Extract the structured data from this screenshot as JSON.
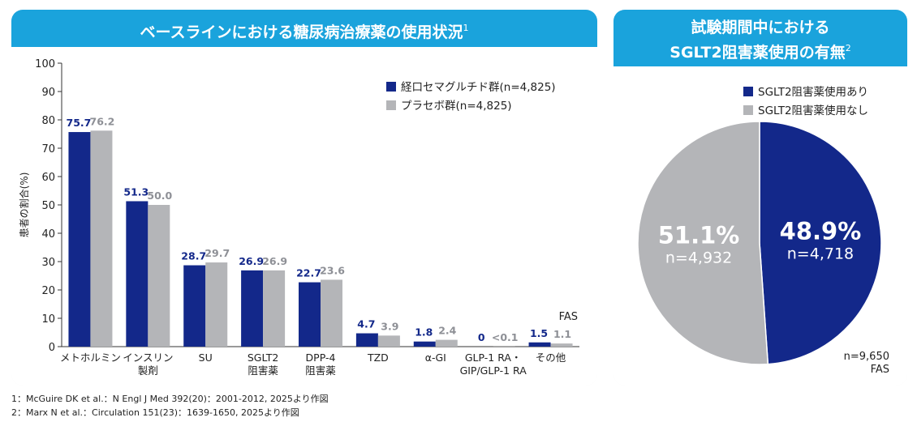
{
  "colors": {
    "header": "#1aa3dc",
    "series_oral": "#13288a",
    "series_placebo": "#b4b5b8",
    "label_placebo": "#8e9096",
    "panel_bg": "#f1f2f3"
  },
  "left": {
    "title": "ベースラインにおける糖尿病治療薬の使用状況",
    "title_sup": "1"
  },
  "right": {
    "title_line1": "試験期間中における",
    "title_line2": "SGLT2阻害薬使用の有無",
    "title_sup": "2"
  },
  "footnotes": [
    "1：McGuire DK et al.：N Engl J Med 392(20)：2001-2012, 2025より作図",
    "2：Marx N et al.：Circulation 151(23)：1639-1650, 2025より作図"
  ],
  "chart_data": [
    {
      "type": "bar",
      "ylabel": "患者の割合(%)",
      "ylim": [
        0,
        100
      ],
      "yticks": [
        "0",
        "10",
        "20",
        "30",
        "40",
        "50",
        "60",
        "70",
        "80",
        "90",
        "100"
      ],
      "grid": false,
      "legend_position": "top-right",
      "categories": [
        [
          "メトホルミン"
        ],
        [
          "インスリン",
          "製剤"
        ],
        [
          "SU"
        ],
        [
          "SGLT2",
          "阻害薬"
        ],
        [
          "DPP-4",
          "阻害薬"
        ],
        [
          "TZD"
        ],
        [
          "α-GI"
        ],
        [
          "GLP-1 RA・",
          "GIP/GLP-1 RA"
        ],
        [
          "その他"
        ]
      ],
      "series": [
        {
          "name": "経口セマグルチド群(n=4,825)",
          "values": [
            75.7,
            51.3,
            28.7,
            26.9,
            22.7,
            4.7,
            1.8,
            0,
            1.5
          ],
          "labels": [
            "75.7",
            "51.3",
            "28.7",
            "26.9",
            "22.7",
            "4.7",
            "1.8",
            "0",
            "1.5"
          ]
        },
        {
          "name": "プラセボ群(n=4,825)",
          "values": [
            76.2,
            50.0,
            29.7,
            26.9,
            23.6,
            3.9,
            2.4,
            0.05,
            1.1
          ],
          "labels": [
            "76.2",
            "50.0",
            "29.7",
            "26.9",
            "23.6",
            "3.9",
            "2.4",
            "<0.1",
            "1.1"
          ]
        }
      ],
      "annotation": "FAS"
    },
    {
      "type": "pie",
      "legend_position": "top-right",
      "slices": [
        {
          "name": "SGLT2阻害薬使用あり",
          "value": 48.9,
          "pct_label": "48.9%",
          "n_label": "n=4,718"
        },
        {
          "name": "SGLT2阻害薬使用なし",
          "value": 51.1,
          "pct_label": "51.1%",
          "n_label": "n=4,932"
        }
      ],
      "annotation_lines": [
        "n=9,650",
        "FAS"
      ]
    }
  ]
}
